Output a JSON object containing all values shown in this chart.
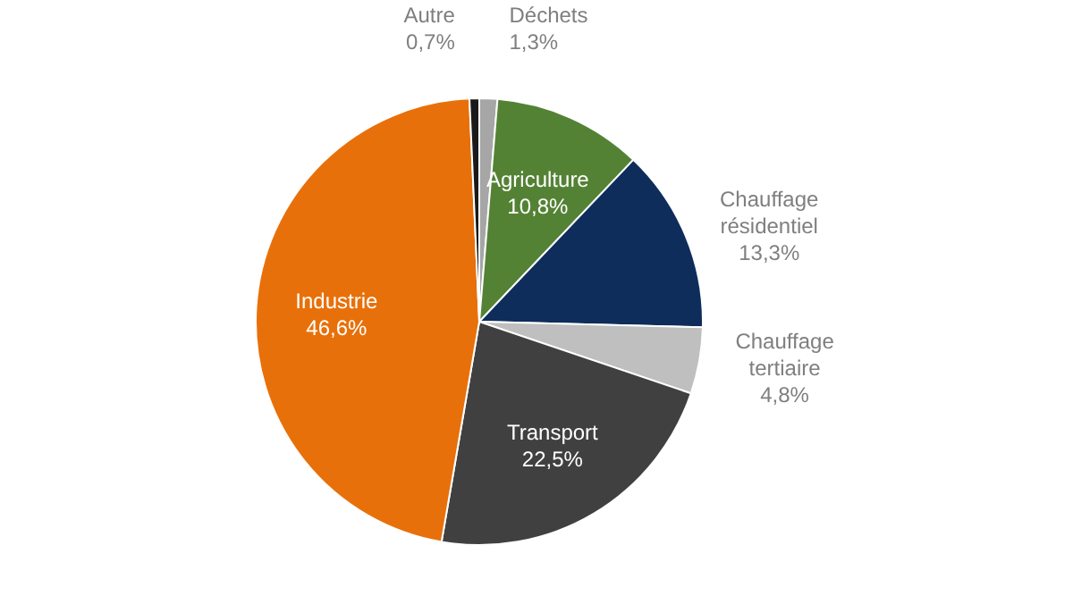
{
  "chart_data": {
    "type": "pie",
    "categories": [
      "Déchets",
      "Agriculture",
      "Chauffage résidentiel",
      "Chauffage tertiaire",
      "Transport",
      "Industrie",
      "Autre"
    ],
    "values": [
      1.3,
      10.8,
      13.3,
      4.8,
      22.5,
      46.6,
      0.7
    ],
    "value_labels": [
      "1,3%",
      "10,8%",
      "13,3%",
      "4,8%",
      "22,5%",
      "46,6%",
      "0,7%"
    ],
    "colors": [
      "#a6a6a6",
      "#548235",
      "#0e2d5b",
      "#bfbfbf",
      "#404040",
      "#e8700a",
      "#1a1a1a"
    ]
  }
}
